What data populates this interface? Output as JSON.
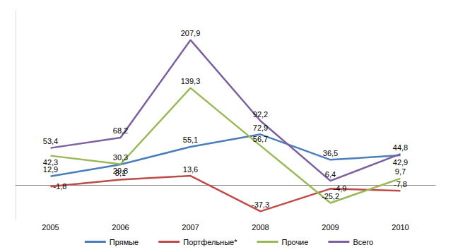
{
  "chart_data": {
    "type": "line",
    "categories": [
      "2005",
      "2006",
      "2007",
      "2008",
      "2009",
      "2010"
    ],
    "series": [
      {
        "name": "Прямые",
        "color": "#4a7ebb",
        "values": [
          12.9,
          29.8,
          55.1,
          72.9,
          36.5,
          42.9
        ],
        "value_labels": [
          "12,9",
          "29,8",
          "55,1",
          "72,9",
          "36,5",
          "42,9"
        ]
      },
      {
        "name": "Портфельные*",
        "color": "#be4b48",
        "values": [
          -1.8,
          8.1,
          13.6,
          -37.3,
          -4.9,
          -7.8
        ],
        "value_labels": [
          "-1,8",
          "8,1",
          "13,6",
          "-37,3",
          "-4,9",
          "-7,8"
        ]
      },
      {
        "name": "Прочие",
        "color": "#98b954",
        "values": [
          42.3,
          30.3,
          139.3,
          56.7,
          -25.2,
          9.7
        ],
        "value_labels": [
          "42,3",
          "30,3",
          "139,3",
          "56,7",
          "-25,2",
          "9,7"
        ]
      },
      {
        "name": "Всего",
        "color": "#7d60a0",
        "values": [
          53.4,
          68.2,
          207.9,
          92.2,
          6.4,
          44.8
        ],
        "value_labels": [
          "53,4",
          "68,2",
          "207,9",
          "92,2",
          "6,4",
          "44,8"
        ]
      }
    ],
    "ylim": [
      -50,
      250
    ],
    "data_labels": true,
    "tick_labels": "x",
    "grid": false,
    "legend": "bottom"
  }
}
